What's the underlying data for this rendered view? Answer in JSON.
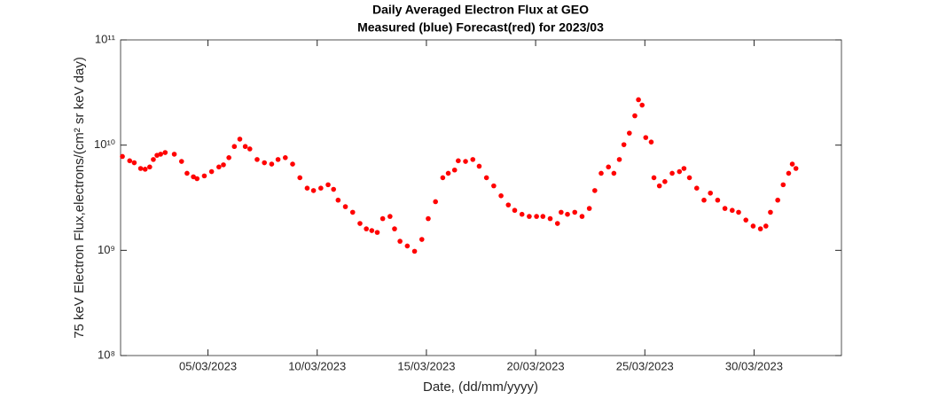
{
  "chart_data": {
    "type": "scatter",
    "title": "Daily Averaged Electron Flux at GEO",
    "subtitle": "Measured (blue) Forecast(red) for 2023/03",
    "xlabel": "Date, (dd/mm/yyyy)",
    "ylabel": "75 keV Electron Flux,electrons/(cm² sr keV day)",
    "log_y": true,
    "grid": false,
    "xlim": [
      "2023-03-01",
      "2023-04-03"
    ],
    "xticks": [
      {
        "value": "2023-03-05",
        "label": "05/03/2023"
      },
      {
        "value": "2023-03-10",
        "label": "10/03/2023"
      },
      {
        "value": "2023-03-15",
        "label": "15/03/2023"
      },
      {
        "value": "2023-03-20",
        "label": "20/03/2023"
      },
      {
        "value": "2023-03-25",
        "label": "25/03/2023"
      },
      {
        "value": "2023-03-30",
        "label": "30/03/2023"
      }
    ],
    "ylim": [
      100000000,
      100000000000
    ],
    "yticks": [
      {
        "value": 100000000,
        "label": "10⁸"
      },
      {
        "value": 1000000000,
        "label": "10⁹"
      },
      {
        "value": 10000000000,
        "label": "10¹⁰"
      },
      {
        "value": 100000000000,
        "label": "10¹¹"
      }
    ],
    "series": [
      {
        "color": "#ff0000",
        "x": [
          "2023-03-01T02:00",
          "2023-03-01T10:00",
          "2023-03-01T15:00",
          "2023-03-01T22:00",
          "2023-03-02T03:00",
          "2023-03-02T08:00",
          "2023-03-02T12:00",
          "2023-03-02T16:00",
          "2023-03-02T20:00",
          "2023-03-03T01:00",
          "2023-03-03T11:00",
          "2023-03-03T19:00",
          "2023-03-04T01:00",
          "2023-03-04T08:00",
          "2023-03-04T12:00",
          "2023-03-04T20:00",
          "2023-03-05T04:00",
          "2023-03-05T12:00",
          "2023-03-05T17:00",
          "2023-03-05T23:00",
          "2023-03-06T05:00",
          "2023-03-06T11:00",
          "2023-03-06T17:00",
          "2023-03-06T22:00",
          "2023-03-07T06:00",
          "2023-03-07T14:00",
          "2023-03-07T22:00",
          "2023-03-08T05:00",
          "2023-03-08T13:00",
          "2023-03-08T21:00",
          "2023-03-09T05:00",
          "2023-03-09T13:00",
          "2023-03-09T20:00",
          "2023-03-10T04:00",
          "2023-03-10T12:00",
          "2023-03-10T18:00",
          "2023-03-10T23:00",
          "2023-03-11T07:00",
          "2023-03-11T15:00",
          "2023-03-11T23:00",
          "2023-03-12T06:00",
          "2023-03-12T12:00",
          "2023-03-12T18:00",
          "2023-03-13T00:00",
          "2023-03-13T08:00",
          "2023-03-13T13:00",
          "2023-03-13T19:00",
          "2023-03-14T03:00",
          "2023-03-14T11:00",
          "2023-03-14T19:00",
          "2023-03-15T02:00",
          "2023-03-15T10:00",
          "2023-03-15T18:00",
          "2023-03-16T00:00",
          "2023-03-16T07:00",
          "2023-03-16T11:00",
          "2023-03-16T19:00",
          "2023-03-17T03:00",
          "2023-03-17T10:00",
          "2023-03-17T18:00",
          "2023-03-18T02:00",
          "2023-03-18T10:00",
          "2023-03-18T18:00",
          "2023-03-19T01:00",
          "2023-03-19T09:00",
          "2023-03-19T17:00",
          "2023-03-20T01:00",
          "2023-03-20T08:00",
          "2023-03-20T16:00",
          "2023-03-21T00:00",
          "2023-03-21T04:00",
          "2023-03-21T11:00",
          "2023-03-21T19:00",
          "2023-03-22T03:00",
          "2023-03-22T11:00",
          "2023-03-22T17:00",
          "2023-03-23T00:00",
          "2023-03-23T08:00",
          "2023-03-23T14:00",
          "2023-03-23T20:00",
          "2023-03-24T01:00",
          "2023-03-24T07:00",
          "2023-03-24T13:00",
          "2023-03-24T17:00",
          "2023-03-24T21:00",
          "2023-03-25T01:00",
          "2023-03-25T07:00",
          "2023-03-25T10:00",
          "2023-03-25T16:00",
          "2023-03-25T22:00",
          "2023-03-26T06:00",
          "2023-03-26T14:00",
          "2023-03-26T19:00",
          "2023-03-27T01:00",
          "2023-03-27T09:00",
          "2023-03-27T17:00",
          "2023-03-28T00:00",
          "2023-03-28T08:00",
          "2023-03-28T16:00",
          "2023-03-29T00:00",
          "2023-03-29T07:00",
          "2023-03-29T15:00",
          "2023-03-29T23:00",
          "2023-03-30T07:00",
          "2023-03-30T13:00",
          "2023-03-30T18:00",
          "2023-03-31T02:00",
          "2023-03-31T08:00",
          "2023-03-31T14:00",
          "2023-03-31T18:00",
          "2023-03-31T22:00"
        ],
        "values": [
          7800000000,
          7100000000,
          6800000000,
          6000000000,
          5900000000,
          6200000000,
          7300000000,
          8000000000,
          8200000000,
          8500000000,
          8200000000,
          7000000000,
          5400000000,
          5000000000,
          4800000000,
          5100000000,
          5600000000,
          6200000000,
          6500000000,
          7600000000,
          9700000000,
          11400000000,
          9700000000,
          9200000000,
          7300000000,
          6800000000,
          6600000000,
          7300000000,
          7600000000,
          6600000000,
          4900000000,
          3900000000,
          3700000000,
          3900000000,
          4200000000,
          3800000000,
          3000000000,
          2600000000,
          2300000000,
          1800000000,
          1600000000,
          1540000000,
          1480000000,
          2000000000,
          2100000000,
          1600000000,
          1220000000,
          1100000000,
          980000000,
          1270000000,
          2000000000,
          2900000000,
          4900000000,
          5400000000,
          5800000000,
          7100000000,
          7000000000,
          7300000000,
          6300000000,
          4900000000,
          4100000000,
          3300000000,
          2700000000,
          2400000000,
          2200000000,
          2100000000,
          2100000000,
          2100000000,
          2000000000,
          1800000000,
          2300000000,
          2200000000,
          2300000000,
          2100000000,
          2500000000,
          3700000000,
          5400000000,
          6200000000,
          5400000000,
          7300000000,
          10100000000,
          13000000000,
          19000000000,
          27000000000,
          24000000000,
          11800000000,
          10700000000,
          4900000000,
          4100000000,
          4500000000,
          5400000000,
          5600000000,
          6000000000,
          4900000000,
          3900000000,
          3000000000,
          3500000000,
          3000000000,
          2500000000,
          2400000000,
          2300000000,
          1940000000,
          1700000000,
          1600000000,
          1700000000,
          2300000000,
          3000000000,
          4200000000,
          5400000000,
          6600000000,
          6000000000
        ]
      }
    ]
  }
}
